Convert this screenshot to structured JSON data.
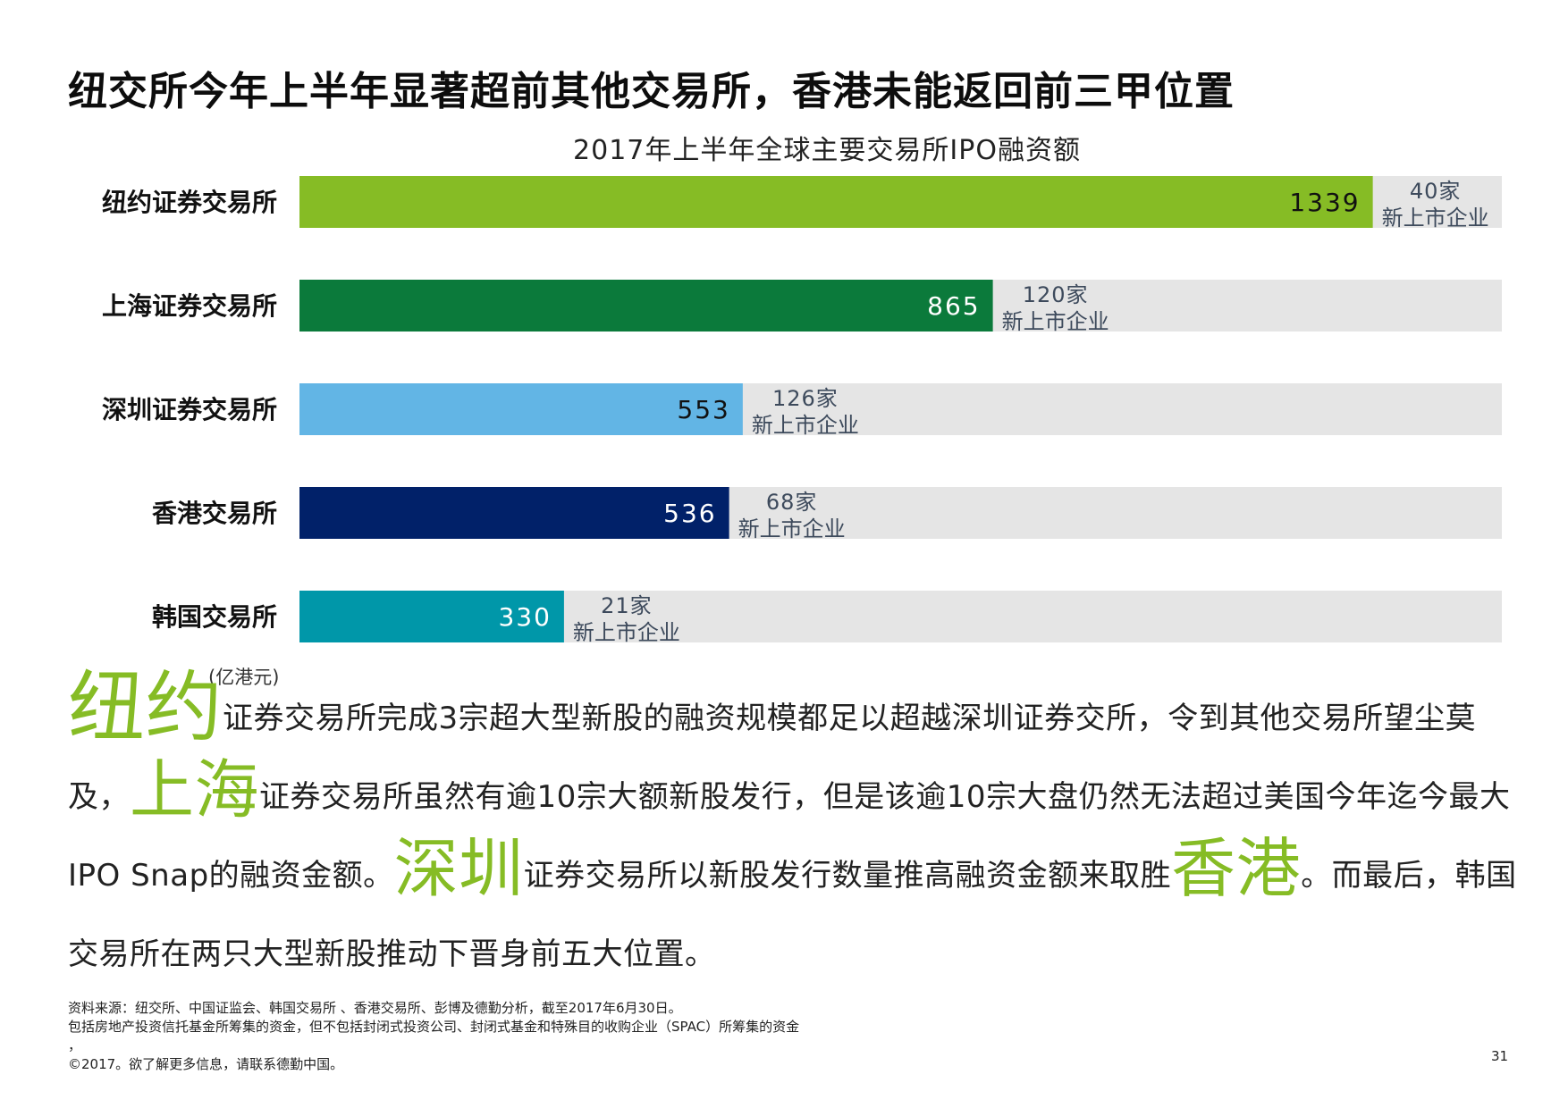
{
  "page": {
    "title": "纽交所今年上半年显著超前其他交易所，香港未能返回前三甲位置",
    "unit_note": "(亿港元)",
    "page_number": "31"
  },
  "chart_data": {
    "type": "bar",
    "orientation": "horizontal",
    "title": "2017年上半年全球主要交易所IPO融资额",
    "unit": "(亿港元)",
    "categories": [
      "纽约证券交易所",
      "上海证券交易所",
      "深圳证券交易所",
      "香港交易所",
      "韩国交易所"
    ],
    "values": [
      1339,
      865,
      553,
      536,
      330
    ],
    "value_labels": [
      "1339",
      "865",
      "553",
      "536",
      "330"
    ],
    "new_listings": [
      "40家",
      "120家",
      "126家",
      "68家",
      "21家"
    ],
    "new_listings_suffix": "新上市企业",
    "xlim": [
      0,
      1500
    ],
    "colors": [
      "#86bc25",
      "#0b7a3b",
      "#62b5e5",
      "#012169",
      "#0097a9"
    ],
    "label_colors": [
      "#111111",
      "#ffffff",
      "#111111",
      "#ffffff",
      "#ffffff"
    ],
    "track_color": "#e5e5e5"
  },
  "body": {
    "hl1": "纽约",
    "t1": "证券交易所完成3宗超大型新股的融资规模都足以超越深圳证券交所，令到其他交易所望尘莫及，",
    "hl2": "上海",
    "t2": "证券交易所虽然有逾10宗大额新股发行，但是该逾10宗大盘仍然无法超过美国今年迄今最大IPO Snap的融资金额。",
    "hl3": "深圳",
    "t3": "证券交易所以新股发行数量推高融资金额来取胜",
    "hl4": "香港",
    "t4": "。而最后，韩国交易所在两只大型新股推动下晋身前五大位置。"
  },
  "footer": {
    "line1": "资料来源：纽交所、中国证监会、韩国交易所 、香港交易所、彭博及德勤分析，截至2017年6月30日。",
    "line2": "包括房地产投资信托基金所筹集的资金，但不包括封闭式投资公司、封闭式基金和特殊目的收购企业（SPAC）所筹集的资金",
    "line3": "，",
    "line4": "©2017。欲了解更多信息，请联系德勤中国。"
  }
}
